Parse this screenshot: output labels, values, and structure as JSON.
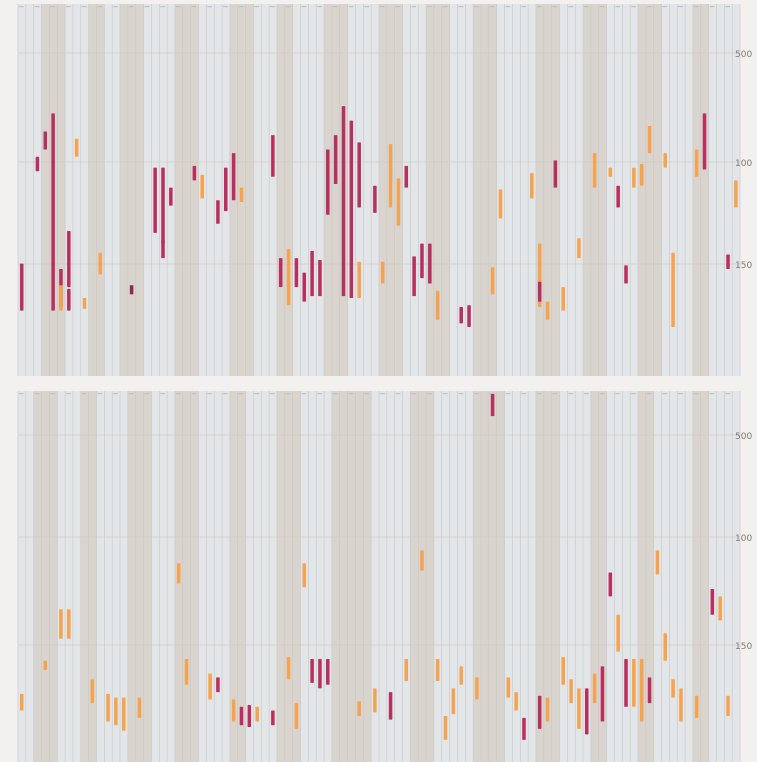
{
  "colors": {
    "column_light": "#e3e6e9",
    "column_dark": "#dad4cf",
    "separator": "#c9c6c3",
    "gridline": "#cfcac5",
    "bg": "#f3f1ef",
    "series": [
      "#b83060",
      "#f4a350",
      "#8a2a55"
    ]
  },
  "chart_data": [
    {
      "type": "bar",
      "title": "",
      "xlabel": "",
      "ylabel": "",
      "y_ticks": [
        "500",
        "100",
        "150"
      ],
      "ylim_note": "positions span 0 (top) to 200 (bottom); header labels too small to read",
      "ylim": [
        0,
        200
      ],
      "column_count": 92,
      "dark_columns": [
        3,
        4,
        5,
        9,
        10,
        13,
        14,
        15,
        20,
        21,
        22,
        27,
        28,
        29,
        33,
        34,
        39,
        40,
        41,
        46,
        47,
        48,
        52,
        53,
        54,
        58,
        59,
        60,
        66,
        67,
        68,
        72,
        73,
        74,
        79,
        80,
        81,
        86,
        87
      ],
      "segments": [
        {
          "col": 0,
          "y1": 139,
          "y2": 165,
          "c": 0
        },
        {
          "col": 2,
          "y1": 80,
          "y2": 88,
          "c": 0
        },
        {
          "col": 3,
          "y1": 66,
          "y2": 76,
          "c": 0
        },
        {
          "col": 4,
          "y1": 56,
          "y2": 165,
          "c": 0
        },
        {
          "col": 5,
          "y1": 142,
          "y2": 163,
          "c": 0
        },
        {
          "col": 5,
          "y1": 151,
          "y2": 165,
          "c": 1
        },
        {
          "col": 6,
          "y1": 121,
          "y2": 152,
          "c": 0
        },
        {
          "col": 6,
          "y1": 153,
          "y2": 165,
          "c": 0
        },
        {
          "col": 7,
          "y1": 70,
          "y2": 80,
          "c": 1
        },
        {
          "col": 8,
          "y1": 158,
          "y2": 164,
          "c": 1
        },
        {
          "col": 10,
          "y1": 133,
          "y2": 145,
          "c": 1
        },
        {
          "col": 14,
          "y1": 151,
          "y2": 156,
          "c": 2
        },
        {
          "col": 17,
          "y1": 86,
          "y2": 122,
          "c": 0
        },
        {
          "col": 18,
          "y1": 86,
          "y2": 128,
          "c": 0
        },
        {
          "col": 18,
          "y1": 126,
          "y2": 136,
          "c": 0
        },
        {
          "col": 19,
          "y1": 97,
          "y2": 107,
          "c": 0
        },
        {
          "col": 22,
          "y1": 85,
          "y2": 93,
          "c": 0
        },
        {
          "col": 23,
          "y1": 90,
          "y2": 103,
          "c": 1
        },
        {
          "col": 25,
          "y1": 104,
          "y2": 117,
          "c": 0
        },
        {
          "col": 26,
          "y1": 86,
          "y2": 110,
          "c": 0
        },
        {
          "col": 27,
          "y1": 78,
          "y2": 104,
          "c": 0
        },
        {
          "col": 28,
          "y1": 97,
          "y2": 105,
          "c": 1
        },
        {
          "col": 32,
          "y1": 68,
          "y2": 91,
          "c": 0
        },
        {
          "col": 33,
          "y1": 136,
          "y2": 152,
          "c": 0
        },
        {
          "col": 34,
          "y1": 131,
          "y2": 162,
          "c": 1
        },
        {
          "col": 35,
          "y1": 136,
          "y2": 152,
          "c": 0
        },
        {
          "col": 36,
          "y1": 144,
          "y2": 160,
          "c": 0
        },
        {
          "col": 37,
          "y1": 132,
          "y2": 157,
          "c": 0
        },
        {
          "col": 38,
          "y1": 137,
          "y2": 157,
          "c": 0
        },
        {
          "col": 39,
          "y1": 76,
          "y2": 112,
          "c": 0
        },
        {
          "col": 40,
          "y1": 68,
          "y2": 95,
          "c": 0
        },
        {
          "col": 41,
          "y1": 52,
          "y2": 157,
          "c": 0
        },
        {
          "col": 42,
          "y1": 60,
          "y2": 158,
          "c": 0
        },
        {
          "col": 43,
          "y1": 72,
          "y2": 108,
          "c": 0
        },
        {
          "col": 43,
          "y1": 138,
          "y2": 158,
          "c": 1
        },
        {
          "col": 45,
          "y1": 96,
          "y2": 111,
          "c": 0
        },
        {
          "col": 46,
          "y1": 138,
          "y2": 150,
          "c": 1
        },
        {
          "col": 47,
          "y1": 73,
          "y2": 108,
          "c": 1
        },
        {
          "col": 48,
          "y1": 92,
          "y2": 118,
          "c": 1
        },
        {
          "col": 49,
          "y1": 85,
          "y2": 97,
          "c": 0
        },
        {
          "col": 50,
          "y1": 135,
          "y2": 157,
          "c": 0
        },
        {
          "col": 51,
          "y1": 128,
          "y2": 147,
          "c": 0
        },
        {
          "col": 52,
          "y1": 128,
          "y2": 150,
          "c": 0
        },
        {
          "col": 53,
          "y1": 154,
          "y2": 170,
          "c": 1
        },
        {
          "col": 56,
          "y1": 163,
          "y2": 172,
          "c": 0
        },
        {
          "col": 57,
          "y1": 162,
          "y2": 174,
          "c": 0
        },
        {
          "col": 60,
          "y1": 141,
          "y2": 156,
          "c": 1
        },
        {
          "col": 61,
          "y1": 98,
          "y2": 114,
          "c": 1
        },
        {
          "col": 65,
          "y1": 89,
          "y2": 103,
          "c": 1
        },
        {
          "col": 66,
          "y1": 128,
          "y2": 163,
          "c": 1
        },
        {
          "col": 66,
          "y1": 149,
          "y2": 160,
          "c": 0
        },
        {
          "col": 67,
          "y1": 160,
          "y2": 170,
          "c": 1
        },
        {
          "col": 68,
          "y1": 82,
          "y2": 97,
          "c": 0
        },
        {
          "col": 69,
          "y1": 152,
          "y2": 165,
          "c": 1
        },
        {
          "col": 71,
          "y1": 125,
          "y2": 136,
          "c": 1
        },
        {
          "col": 73,
          "y1": 78,
          "y2": 97,
          "c": 1
        },
        {
          "col": 75,
          "y1": 86,
          "y2": 91,
          "c": 1
        },
        {
          "col": 76,
          "y1": 96,
          "y2": 108,
          "c": 0
        },
        {
          "col": 77,
          "y1": 140,
          "y2": 150,
          "c": 0
        },
        {
          "col": 78,
          "y1": 86,
          "y2": 97,
          "c": 1
        },
        {
          "col": 79,
          "y1": 84,
          "y2": 96,
          "c": 1
        },
        {
          "col": 80,
          "y1": 63,
          "y2": 78,
          "c": 1
        },
        {
          "col": 82,
          "y1": 78,
          "y2": 86,
          "c": 1
        },
        {
          "col": 83,
          "y1": 133,
          "y2": 174,
          "c": 1
        },
        {
          "col": 86,
          "y1": 76,
          "y2": 91,
          "c": 1
        },
        {
          "col": 87,
          "y1": 56,
          "y2": 87,
          "c": 0
        },
        {
          "col": 90,
          "y1": 134,
          "y2": 142,
          "c": 0
        },
        {
          "col": 91,
          "y1": 93,
          "y2": 108,
          "c": 1
        }
      ]
    },
    {
      "type": "bar",
      "title": "",
      "xlabel": "",
      "ylabel": "",
      "y_ticks": [
        "500",
        "100",
        "150"
      ],
      "ylim": [
        0,
        200
      ],
      "column_count": 92,
      "dark_columns": [
        2,
        3,
        4,
        8,
        9,
        14,
        15,
        16,
        20,
        21,
        22,
        27,
        28,
        33,
        34,
        35,
        40,
        41,
        42,
        43,
        44,
        50,
        51,
        52,
        58,
        59,
        60,
        61,
        66,
        67,
        68,
        73,
        74,
        79,
        80,
        86,
        87
      ],
      "segments": [
        {
          "col": 0,
          "y1": 163,
          "y2": 172,
          "c": 1
        },
        {
          "col": 3,
          "y1": 145,
          "y2": 150,
          "c": 1
        },
        {
          "col": 5,
          "y1": 117,
          "y2": 133,
          "c": 1
        },
        {
          "col": 6,
          "y1": 117,
          "y2": 133,
          "c": 1
        },
        {
          "col": 9,
          "y1": 155,
          "y2": 168,
          "c": 1
        },
        {
          "col": 11,
          "y1": 163,
          "y2": 178,
          "c": 1
        },
        {
          "col": 12,
          "y1": 165,
          "y2": 180,
          "c": 1
        },
        {
          "col": 13,
          "y1": 165,
          "y2": 183,
          "c": 1
        },
        {
          "col": 15,
          "y1": 165,
          "y2": 176,
          "c": 1
        },
        {
          "col": 20,
          "y1": 92,
          "y2": 103,
          "c": 1
        },
        {
          "col": 21,
          "y1": 144,
          "y2": 158,
          "c": 1
        },
        {
          "col": 24,
          "y1": 152,
          "y2": 166,
          "c": 1
        },
        {
          "col": 25,
          "y1": 154,
          "y2": 162,
          "c": 0
        },
        {
          "col": 27,
          "y1": 166,
          "y2": 178,
          "c": 1
        },
        {
          "col": 28,
          "y1": 170,
          "y2": 180,
          "c": 0
        },
        {
          "col": 29,
          "y1": 169,
          "y2": 181,
          "c": 0
        },
        {
          "col": 30,
          "y1": 170,
          "y2": 178,
          "c": 1
        },
        {
          "col": 32,
          "y1": 172,
          "y2": 180,
          "c": 0
        },
        {
          "col": 34,
          "y1": 143,
          "y2": 155,
          "c": 1
        },
        {
          "col": 35,
          "y1": 168,
          "y2": 182,
          "c": 1
        },
        {
          "col": 36,
          "y1": 92,
          "y2": 105,
          "c": 1
        },
        {
          "col": 37,
          "y1": 144,
          "y2": 157,
          "c": 0
        },
        {
          "col": 38,
          "y1": 144,
          "y2": 160,
          "c": 0
        },
        {
          "col": 39,
          "y1": 144,
          "y2": 158,
          "c": 0
        },
        {
          "col": 43,
          "y1": 167,
          "y2": 175,
          "c": 1
        },
        {
          "col": 45,
          "y1": 160,
          "y2": 173,
          "c": 1
        },
        {
          "col": 47,
          "y1": 162,
          "y2": 177,
          "c": 0
        },
        {
          "col": 49,
          "y1": 144,
          "y2": 156,
          "c": 1
        },
        {
          "col": 51,
          "y1": 85,
          "y2": 96,
          "c": 1
        },
        {
          "col": 53,
          "y1": 144,
          "y2": 156,
          "c": 1
        },
        {
          "col": 54,
          "y1": 175,
          "y2": 188,
          "c": 1
        },
        {
          "col": 55,
          "y1": 160,
          "y2": 174,
          "c": 1
        },
        {
          "col": 56,
          "y1": 148,
          "y2": 158,
          "c": 1
        },
        {
          "col": 58,
          "y1": 154,
          "y2": 166,
          "c": 1
        },
        {
          "col": 60,
          "y1": 0,
          "y2": 12,
          "c": 0
        },
        {
          "col": 62,
          "y1": 154,
          "y2": 165,
          "c": 1
        },
        {
          "col": 63,
          "y1": 162,
          "y2": 172,
          "c": 1
        },
        {
          "col": 64,
          "y1": 176,
          "y2": 188,
          "c": 0
        },
        {
          "col": 66,
          "y1": 164,
          "y2": 182,
          "c": 0
        },
        {
          "col": 67,
          "y1": 165,
          "y2": 178,
          "c": 1
        },
        {
          "col": 69,
          "y1": 143,
          "y2": 158,
          "c": 1
        },
        {
          "col": 70,
          "y1": 155,
          "y2": 168,
          "c": 1
        },
        {
          "col": 71,
          "y1": 160,
          "y2": 182,
          "c": 1
        },
        {
          "col": 72,
          "y1": 160,
          "y2": 185,
          "c": 0
        },
        {
          "col": 73,
          "y1": 152,
          "y2": 168,
          "c": 1
        },
        {
          "col": 74,
          "y1": 148,
          "y2": 178,
          "c": 0
        },
        {
          "col": 75,
          "y1": 97,
          "y2": 110,
          "c": 0
        },
        {
          "col": 76,
          "y1": 120,
          "y2": 140,
          "c": 1
        },
        {
          "col": 77,
          "y1": 144,
          "y2": 170,
          "c": 0
        },
        {
          "col": 78,
          "y1": 144,
          "y2": 170,
          "c": 1
        },
        {
          "col": 79,
          "y1": 144,
          "y2": 178,
          "c": 1
        },
        {
          "col": 80,
          "y1": 154,
          "y2": 168,
          "c": 0
        },
        {
          "col": 81,
          "y1": 85,
          "y2": 98,
          "c": 1
        },
        {
          "col": 82,
          "y1": 130,
          "y2": 145,
          "c": 1
        },
        {
          "col": 83,
          "y1": 155,
          "y2": 165,
          "c": 1
        },
        {
          "col": 84,
          "y1": 160,
          "y2": 178,
          "c": 1
        },
        {
          "col": 86,
          "y1": 164,
          "y2": 176,
          "c": 1
        },
        {
          "col": 88,
          "y1": 106,
          "y2": 120,
          "c": 0
        },
        {
          "col": 89,
          "y1": 110,
          "y2": 123,
          "c": 1
        },
        {
          "col": 90,
          "y1": 164,
          "y2": 175,
          "c": 1
        }
      ]
    }
  ]
}
